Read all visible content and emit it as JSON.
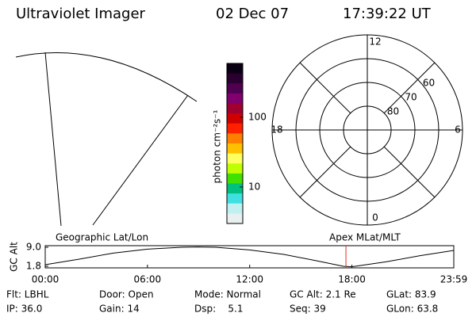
{
  "header": {
    "title": "Ultraviolet Imager",
    "date": "02 Dec 07",
    "time": "17:39:22 UT"
  },
  "colorbar": {
    "label": "photon cm⁻²s⁻¹",
    "scale": "log",
    "ylim": [
      3,
      590
    ],
    "ticks": [
      10,
      100
    ],
    "colors": [
      "#0a0014",
      "#2a0030",
      "#500050",
      "#800070",
      "#a00030",
      "#d00000",
      "#ff2000",
      "#ff8000",
      "#ffc000",
      "#ffff60",
      "#c0ff00",
      "#40e000",
      "#00c080",
      "#40e0e0",
      "#c0f0f0",
      "#e8f0f0"
    ]
  },
  "polar": {
    "outer_lat": 50,
    "lat_circles": [
      60,
      70,
      80
    ],
    "mlt_labels": [
      {
        "value": 12,
        "label": "12"
      },
      {
        "value": 18,
        "label": "18"
      },
      {
        "value": 6,
        "label": "6"
      },
      {
        "value": 0,
        "label": "0"
      }
    ]
  },
  "altitude": {
    "type": "line",
    "ylabel": "GC Alt",
    "left_title": "Geographic Lat/Lon",
    "right_title": "Apex MLat/MLT",
    "x": [
      0,
      2,
      4,
      6,
      8,
      9,
      10,
      12,
      14,
      16,
      17.5,
      18,
      20,
      22,
      23.98
    ],
    "values": [
      2.4,
      4.5,
      6.8,
      8.3,
      9.0,
      9.1,
      9.0,
      8.0,
      6.3,
      3.8,
      1.8,
      1.6,
      3.5,
      5.8,
      7.8
    ],
    "color": "#000000",
    "marker_x": 17.65,
    "marker_color": "#e03020",
    "xlim": [
      0,
      23.98
    ],
    "ylim": [
      1.2,
      9.6
    ],
    "xticks": [
      {
        "value": 0,
        "label": "00:00"
      },
      {
        "value": 6,
        "label": "06:00"
      },
      {
        "value": 12,
        "label": "12:00"
      },
      {
        "value": 18,
        "label": "18:00"
      },
      {
        "value": 23.98,
        "label": "23:59"
      }
    ],
    "yticks": [
      {
        "value": 9.0,
        "label": "9.0"
      },
      1.8
    ]
  },
  "info": {
    "rows": [
      [
        "Flt: LBHL",
        "Door: Open",
        "Mode: Normal",
        "GC Alt: 2.1 Re",
        "GLat: 83.9"
      ],
      [
        "IP: 36.0",
        "Gain: 14",
        "Dsp:    5.1",
        "Seq: 39",
        "GLon: 63.8"
      ]
    ]
  }
}
